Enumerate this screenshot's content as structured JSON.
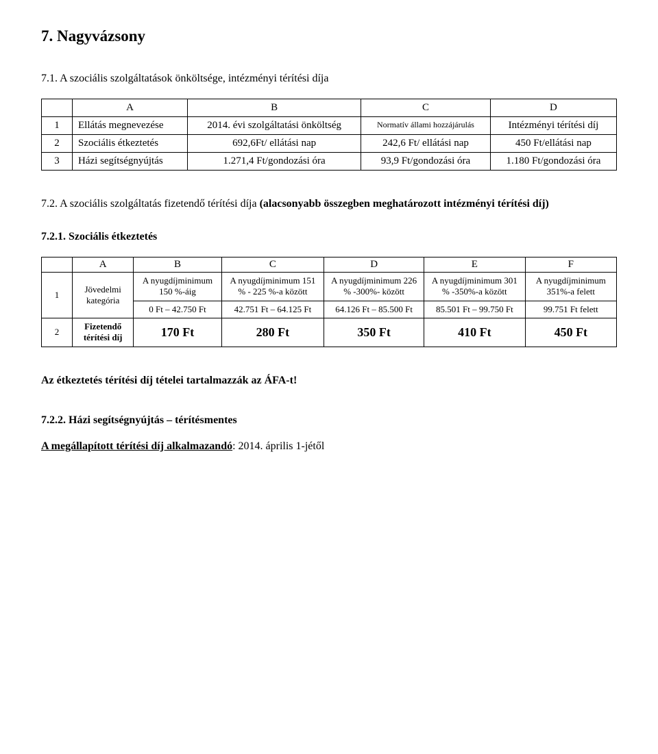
{
  "title": "7. Nagyvázsony",
  "section71": "7.1. A szociális szolgáltatások önköltsége, intézményi térítési díja",
  "t1": {
    "h": {
      "a": "A",
      "b": "B",
      "c": "C",
      "d": "D"
    },
    "r1": {
      "num": "1",
      "a": "Ellátás megnevezése",
      "b": "2014. évi szolgáltatási önköltség",
      "c": "Normatív állami hozzájárulás",
      "d": "Intézményi térítési díj"
    },
    "r2": {
      "num": "2",
      "a": "Szociális étkeztetés",
      "b": "692,6Ft/ ellátási nap",
      "c": "242,6 Ft/ ellátási nap",
      "d": "450 Ft/ellátási nap"
    },
    "r3": {
      "num": "3",
      "a": "Házi segítségnyújtás",
      "b": "1.271,4 Ft/gondozási óra",
      "c": "93,9 Ft/gondozási óra",
      "d": "1.180 Ft/gondozási óra"
    }
  },
  "section72_head": "7.2. A szociális szolgáltatás fizetendő térítési díja ",
  "section72_tail": "(alacsonyabb összegben meghatározott intézményi térítési díj)",
  "section721": "7.2.1. Szociális étkeztetés",
  "t2": {
    "top": {
      "a": "A",
      "b": "B",
      "c": "C",
      "d": "D",
      "e": "E",
      "f": "F"
    },
    "row1": {
      "num": "1",
      "a": "Jövedelmi kategória",
      "b": "A nyugdíjminimum 150 %-áig",
      "c": "A nyugdíjminimum 151 % - 225 %-a között",
      "d": "A nyugdíjminimum 226 % -300%- között",
      "e": "A nyugdíjminimum 301 % -350%-a között",
      "f": "A nyugdíjminimum 351%-a felett"
    },
    "row1b": {
      "b": "0 Ft – 42.750 Ft",
      "c": "42.751 Ft – 64.125 Ft",
      "d": "64.126 Ft – 85.500 Ft",
      "e": "85.501 Ft – 99.750 Ft",
      "f": "99.751 Ft felett"
    },
    "row2": {
      "num": "2",
      "a": "Fizetendő térítési díj",
      "b": "170 Ft",
      "c": "280 Ft",
      "d": "350 Ft",
      "e": "410 Ft",
      "f": "450 Ft"
    }
  },
  "afa_note": "Az étkeztetés térítési díj tételei tartalmazzák az ÁFA-t!",
  "section722": "7.2.2. Házi segítségnyújtás – térítésmentes",
  "applied_from_label": "A megállapított térítési díj alkalmazandó",
  "applied_from_value": ": 2014. április 1-jétől"
}
